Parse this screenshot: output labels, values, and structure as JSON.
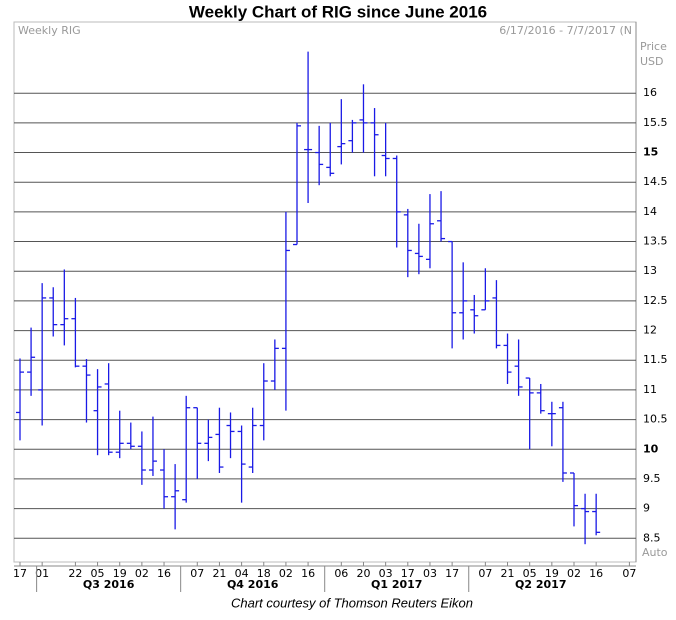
{
  "chart_data": {
    "type": "ohlc",
    "title": "Weekly Chart of RIG since June 2016",
    "symbol_label": "Weekly RIG",
    "range_label": "6/17/2016 - 7/7/2017 (N",
    "axis_label": "Price",
    "unit_label": "USD",
    "scale_mode": "Auto",
    "footer": "Chart courtesy of Thomson Reuters Eikon",
    "color": "#1a1ae6",
    "grid": true,
    "ylim": [
      8.1,
      17.2
    ],
    "yticks": [
      8.5,
      9,
      9.5,
      10,
      10.5,
      11,
      11.5,
      12,
      12.5,
      13,
      13.5,
      14,
      14.5,
      15,
      15.5,
      16
    ],
    "major_ticks": [
      10,
      15
    ],
    "quarters": [
      "Q3 2016",
      "Q4 2016",
      "Q1 2017",
      "Q2 2017"
    ],
    "categories": [
      "17",
      null,
      "01",
      null,
      null,
      "22",
      null,
      "05",
      null,
      "19",
      null,
      "02",
      null,
      "16",
      null,
      null,
      "07",
      null,
      "21",
      null,
      "04",
      null,
      "18",
      null,
      "02",
      null,
      "16",
      null,
      null,
      "06",
      null,
      "20",
      null,
      "03",
      null,
      "17",
      null,
      "03",
      null,
      "17",
      null,
      null,
      "07",
      null,
      "21",
      null,
      "05",
      null,
      "19",
      null,
      "02",
      null,
      "16",
      null,
      null,
      "07"
    ],
    "series": [
      {
        "name": "RIG",
        "open": [
          10.62,
          11.3,
          11.0,
          12.55,
          12.1,
          12.2,
          11.4,
          10.65,
          11.1,
          9.95,
          10.1,
          10.05,
          9.65,
          9.65,
          9.2,
          9.15,
          10.7,
          10.1,
          10.25,
          10.4,
          10.3,
          9.7,
          10.4,
          11.15,
          11.7,
          13.45,
          15.05,
          15.0,
          14.75,
          15.1,
          15.2,
          15.55,
          15.5,
          14.95,
          14.9,
          13.95,
          13.3,
          13.2,
          13.85,
          13.5,
          12.3,
          12.35,
          12.35,
          12.55,
          11.75,
          11.4,
          11.2,
          10.95,
          10.6,
          10.7,
          9.6,
          9.0,
          8.95,
          null,
          null,
          null
        ],
        "high": [
          11.53,
          12.05,
          12.8,
          12.73,
          13.03,
          12.55,
          11.52,
          11.35,
          11.45,
          10.65,
          10.45,
          10.3,
          10.55,
          10.0,
          9.75,
          10.9,
          10.7,
          10.5,
          10.7,
          10.62,
          10.4,
          10.7,
          11.45,
          11.85,
          14.0,
          15.5,
          16.7,
          15.45,
          15.5,
          15.9,
          15.55,
          16.15,
          15.75,
          15.5,
          14.95,
          14.05,
          13.8,
          14.3,
          14.35,
          13.5,
          13.15,
          12.6,
          13.05,
          12.85,
          11.95,
          11.85,
          11.2,
          11.1,
          10.8,
          10.8,
          9.6,
          9.25,
          9.25,
          null,
          null,
          null
        ],
        "low": [
          10.15,
          10.9,
          10.4,
          11.9,
          11.75,
          11.38,
          10.45,
          9.9,
          9.9,
          9.85,
          10.0,
          9.4,
          9.55,
          9.0,
          8.65,
          9.1,
          9.5,
          9.8,
          9.6,
          9.85,
          9.1,
          9.6,
          10.15,
          11.0,
          10.65,
          13.45,
          14.15,
          14.45,
          14.6,
          14.8,
          15.0,
          15.0,
          14.6,
          14.6,
          13.4,
          12.9,
          12.95,
          13.05,
          13.5,
          11.7,
          11.85,
          11.95,
          12.35,
          11.7,
          11.1,
          10.9,
          10.0,
          10.6,
          10.05,
          9.45,
          8.7,
          8.4,
          8.55,
          null,
          null,
          null
        ],
        "close": [
          11.3,
          11.55,
          12.55,
          12.1,
          12.2,
          11.4,
          11.25,
          11.05,
          9.95,
          10.1,
          10.05,
          9.65,
          9.8,
          9.2,
          9.3,
          10.7,
          10.1,
          10.2,
          9.7,
          10.3,
          9.75,
          10.4,
          11.15,
          11.7,
          13.35,
          15.45,
          15.05,
          14.8,
          14.65,
          15.15,
          15.5,
          15.5,
          15.3,
          14.9,
          14.0,
          13.35,
          13.25,
          13.8,
          13.55,
          12.3,
          12.5,
          12.25,
          12.5,
          11.75,
          11.3,
          11.05,
          10.95,
          10.65,
          10.6,
          9.6,
          9.05,
          8.95,
          8.6,
          null,
          null,
          null
        ]
      }
    ]
  }
}
